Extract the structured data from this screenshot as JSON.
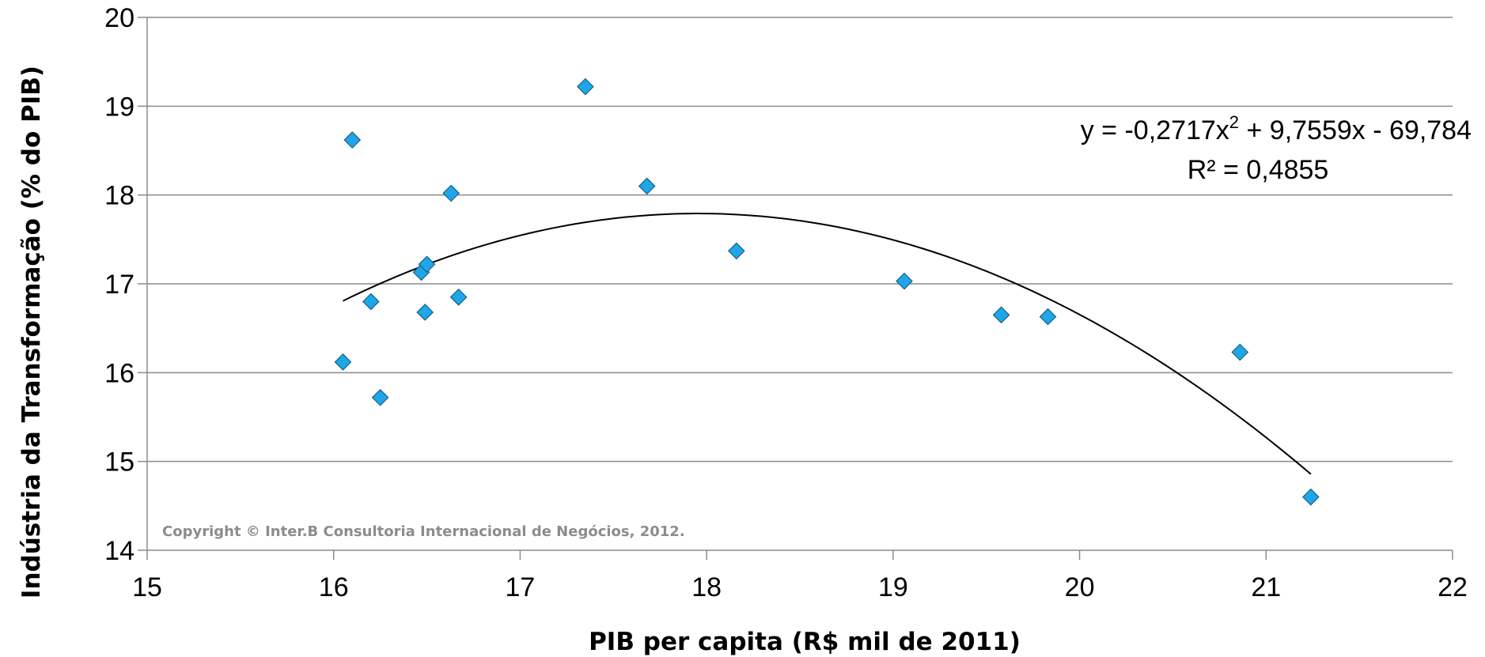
{
  "chart_data": {
    "type": "scatter",
    "xlabel": "PIB per capita (R$ mil de 2011)",
    "ylabel": "Indústria da Transformação (% do PIB)",
    "xlim": [
      15,
      22
    ],
    "ylim": [
      14,
      20
    ],
    "x_ticks": [
      "15",
      "16",
      "17",
      "18",
      "19",
      "20",
      "21",
      "22"
    ],
    "y_ticks": [
      "14",
      "15",
      "16",
      "17",
      "18",
      "19",
      "20"
    ],
    "grid": "horizontal",
    "marker_color": "#1ea7e8",
    "series": [
      {
        "points": [
          {
            "x": 16.05,
            "y": 16.12
          },
          {
            "x": 16.1,
            "y": 18.62
          },
          {
            "x": 16.2,
            "y": 16.8
          },
          {
            "x": 16.25,
            "y": 15.72
          },
          {
            "x": 16.47,
            "y": 17.13
          },
          {
            "x": 16.49,
            "y": 16.68
          },
          {
            "x": 16.5,
            "y": 17.22
          },
          {
            "x": 16.63,
            "y": 18.02
          },
          {
            "x": 16.67,
            "y": 16.85
          },
          {
            "x": 17.35,
            "y": 19.22
          },
          {
            "x": 17.68,
            "y": 18.1
          },
          {
            "x": 18.16,
            "y": 17.37
          },
          {
            "x": 19.06,
            "y": 17.03
          },
          {
            "x": 19.58,
            "y": 16.65
          },
          {
            "x": 19.83,
            "y": 16.63
          },
          {
            "x": 20.86,
            "y": 16.23
          },
          {
            "x": 21.24,
            "y": 14.6
          }
        ]
      }
    ],
    "trendline": {
      "type": "polynomial-2",
      "coefficients": {
        "a": -0.2717,
        "b": 9.7559,
        "c": -69.784
      },
      "x_range": [
        16.05,
        21.24
      ],
      "equation_text": {
        "prefix": "y = -0,2717x",
        "sup": "2",
        "suffix": " + 9,7559x - 69,784",
        "r2": "R² = 0,4855"
      },
      "color": "#000000"
    },
    "annotation": "Copyright © Inter.B Consultoria Internacional de Negócios, 2012."
  }
}
